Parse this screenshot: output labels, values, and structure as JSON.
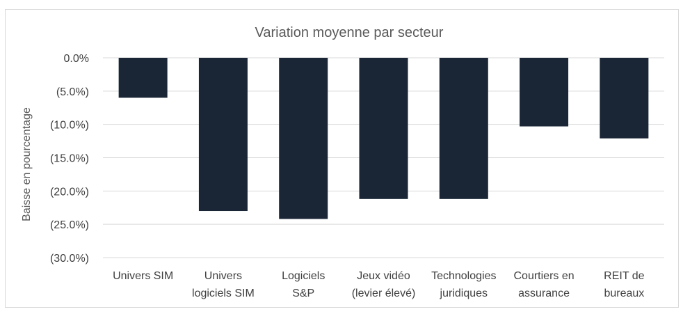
{
  "chart_data": {
    "type": "bar",
    "title": "Variation moyenne par secteur",
    "ylabel": "Baisse en pourcentage",
    "xlabel": "",
    "categories": [
      [
        "Univers SIM"
      ],
      [
        "Univers",
        "logiciels SIM"
      ],
      [
        "Logiciels",
        "S&P"
      ],
      [
        "Jeux vidéo",
        "(levier élevé)"
      ],
      [
        "Technologies",
        "juridiques"
      ],
      [
        "Courtiers en",
        "assurance"
      ],
      [
        "REIT de",
        "bureaux"
      ]
    ],
    "values": [
      -6.0,
      -23.0,
      -24.2,
      -21.2,
      -21.2,
      -10.3,
      -12.1
    ],
    "ylim": [
      -30,
      0
    ],
    "yticks": [
      0,
      -5,
      -10,
      -15,
      -20,
      -25,
      -30
    ],
    "ytick_labels": [
      "0.0%",
      "(5.0%)",
      "(10.0%)",
      "(15.0%)",
      "(20.0%)",
      "(25.0%)",
      "(30.0%)"
    ],
    "bar_color": "#1a2636",
    "grid": true,
    "legend": "none"
  }
}
